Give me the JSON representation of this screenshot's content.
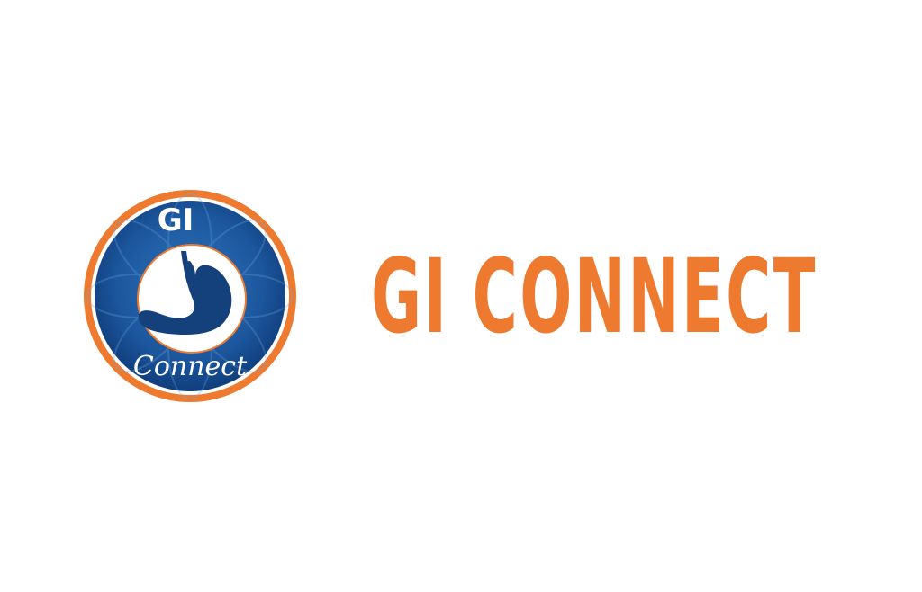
{
  "brand": {
    "wordmark": "GI CONNECT",
    "badge_top_text": "GI",
    "badge_script_text": "Connect",
    "colors": {
      "orange": "#ee7a30",
      "blue": "#1f5aa1",
      "dark_blue": "#103e7c",
      "stomach": "#14407c",
      "white": "#ffffff"
    },
    "logo_icon": "stomach-icon"
  }
}
